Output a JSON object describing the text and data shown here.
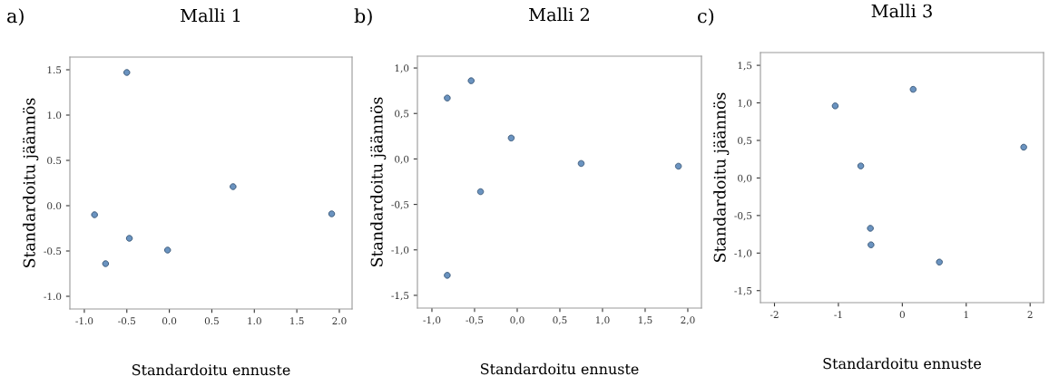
{
  "chart_data": [
    {
      "type": "scatter",
      "title": "Malli 1",
      "xlabel": "Standardoitu ennuste",
      "ylabel": "Standardoitu jäännös",
      "annotations": [
        "a)"
      ],
      "x": [
        -0.88,
        -0.5,
        -0.47,
        -0.75,
        -0.02,
        0.75,
        1.91
      ],
      "values": [
        -0.1,
        1.47,
        -0.36,
        -0.64,
        -0.49,
        0.21,
        -0.09
      ],
      "color": "#6a93c0",
      "marker": "circle",
      "grid": false,
      "xlim": [
        -1.17,
        2.15
      ],
      "ylim": [
        -1.14,
        1.64
      ],
      "xticks": [
        {
          "value": -1.0,
          "label": "-1.0"
        },
        -0.5,
        {
          "value": 0.0,
          "label": "0.0"
        },
        0.5,
        {
          "value": 1.0,
          "label": "1.0"
        },
        1.5,
        {
          "value": 2.0,
          "label": "2.0"
        }
      ],
      "yticks": [
        {
          "value": -1.0,
          "label": "-1.0"
        },
        -0.5,
        {
          "value": 0.0,
          "label": "0.0"
        },
        0.5,
        {
          "value": 1.0,
          "label": "1.0"
        },
        1.5
      ]
    },
    {
      "type": "scatter",
      "title": "Malli 2",
      "xlabel": "Standardoitu ennuste",
      "ylabel": "Standardoitu jäännös",
      "annotations": [
        "b)"
      ],
      "x": [
        -0.82,
        -0.54,
        -0.07,
        0.75,
        1.89,
        -0.43,
        -0.82
      ],
      "values": [
        0.67,
        0.86,
        0.23,
        -0.05,
        -0.08,
        -0.36,
        -1.28
      ],
      "color": "#6a93c0",
      "marker": "circle",
      "grid": false,
      "xlim": [
        -1.17,
        2.16
      ],
      "ylim": [
        -1.64,
        1.13
      ],
      "xticks": [
        {
          "value": -1.0,
          "label": "-1,0"
        },
        {
          "value": -0.5,
          "label": "-0,5"
        },
        {
          "value": 0.0,
          "label": "0,0"
        },
        {
          "value": 0.5,
          "label": "0,5"
        },
        {
          "value": 1.0,
          "label": "1,0"
        },
        {
          "value": 1.5,
          "label": "1,5"
        },
        {
          "value": 2.0,
          "label": "2,0"
        }
      ],
      "yticks": [
        {
          "value": -1.5,
          "label": "-1,5"
        },
        {
          "value": -1.0,
          "label": "-1,0"
        },
        {
          "value": -0.5,
          "label": "-0,5"
        },
        {
          "value": 0.0,
          "label": "0,0"
        },
        {
          "value": 0.5,
          "label": "0,5"
        },
        {
          "value": 1.0,
          "label": "1,0"
        }
      ]
    },
    {
      "type": "scatter",
      "title": "Malli 3",
      "xlabel": "Standardoitu ennuste",
      "ylabel": "Standardoitu jäännös",
      "annotations": [
        "c)"
      ],
      "x": [
        -1.05,
        -0.65,
        0.17,
        1.9,
        -0.5,
        -0.49,
        0.58
      ],
      "values": [
        0.96,
        0.16,
        1.18,
        0.41,
        -0.67,
        -0.89,
        -1.12
      ],
      "color": "#6a93c0",
      "marker": "circle",
      "grid": false,
      "xlim": [
        -2.22,
        2.21
      ],
      "ylim": [
        -1.66,
        1.67
      ],
      "xticks": [
        -2,
        -1,
        0,
        1,
        2
      ],
      "yticks": [
        {
          "value": -1.5,
          "label": "-1,5"
        },
        {
          "value": -1.0,
          "label": "-1,0"
        },
        {
          "value": -0.5,
          "label": "-0,5"
        },
        {
          "value": 0.0,
          "label": "0,0"
        },
        {
          "value": 0.5,
          "label": "0,5"
        },
        {
          "value": 1.0,
          "label": "1,0"
        },
        {
          "value": 1.5,
          "label": "1,5"
        }
      ]
    }
  ]
}
